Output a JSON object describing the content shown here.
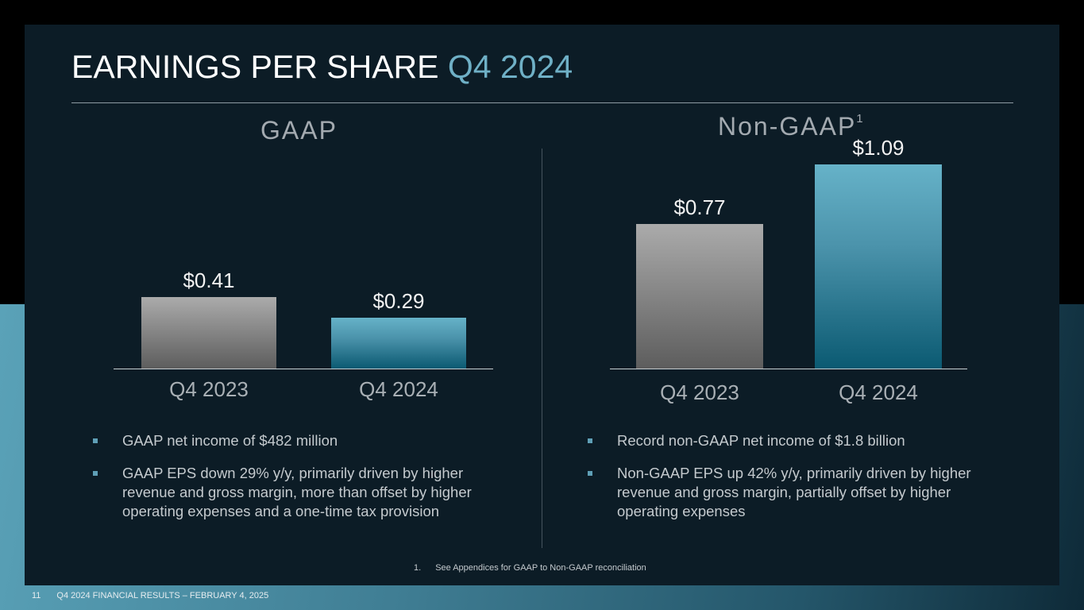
{
  "slide": {
    "title_main": "EARNINGS PER SHARE",
    "title_accent": "Q4 2024",
    "page_number": "11",
    "footer_text": "Q4 2024 FINANCIAL RESULTS – FEBRUARY 4, 2025",
    "footnote_number": "1.",
    "footnote_text": "See Appendices for GAAP to Non-GAAP reconciliation"
  },
  "colors": {
    "accent": "#6fb0c6",
    "panel_bg": "#0c1c26",
    "bar_prior": "#8a8a8a",
    "bar_current": "#4b93ab"
  },
  "chart_data": [
    {
      "type": "bar",
      "title": "GAAP",
      "categories": [
        "Q4 2023",
        "Q4 2024"
      ],
      "values": [
        0.41,
        0.29
      ],
      "value_labels": [
        "$0.41",
        "$0.29"
      ],
      "xlabel": "",
      "ylabel": "",
      "ylim": [
        0,
        1.1
      ],
      "grid": false,
      "legend": "none"
    },
    {
      "type": "bar",
      "title": "Non-GAAP",
      "title_superscript": "1",
      "categories": [
        "Q4 2023",
        "Q4 2024"
      ],
      "values": [
        0.77,
        1.09
      ],
      "value_labels": [
        "$0.77",
        "$1.09"
      ],
      "xlabel": "",
      "ylabel": "",
      "ylim": [
        0,
        1.1
      ],
      "grid": false,
      "legend": "none"
    }
  ],
  "gaap_bullets": [
    "GAAP net income of $482 million",
    "GAAP EPS down 29% y/y, primarily driven by higher revenue and gross margin, more than offset by higher operating expenses and a one-time tax provision"
  ],
  "nongaap_bullets": [
    "Record non-GAAP net income of $1.8 billion",
    "Non-GAAP EPS up 42% y/y, primarily driven by higher revenue and gross margin, partially offset by higher operating expenses"
  ]
}
